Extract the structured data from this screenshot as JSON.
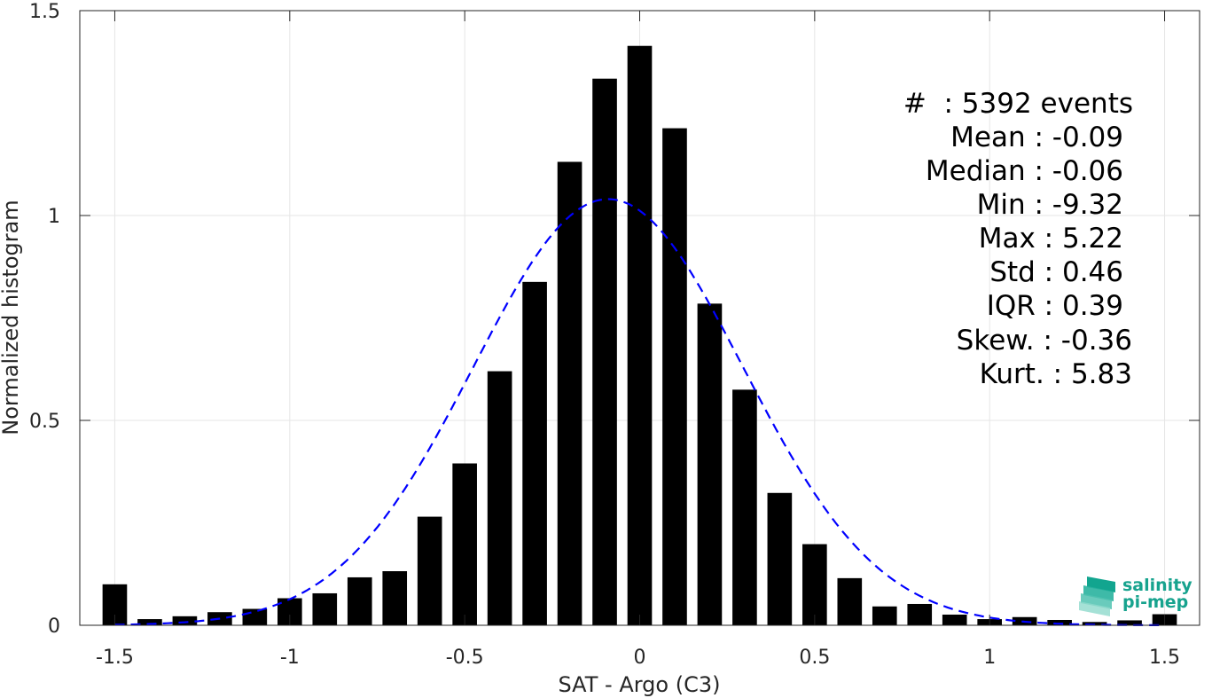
{
  "chart_data": {
    "type": "bar",
    "title": "",
    "xlabel": "SAT - Argo (C3)",
    "ylabel": "Normalized histogram",
    "xlim": [
      -1.6,
      1.6
    ],
    "ylim": [
      0,
      1.5
    ],
    "xticks": [
      -1.5,
      -1,
      -0.5,
      0,
      0.5,
      1,
      1.5
    ],
    "xtick_labels": [
      "-1.5",
      "-1",
      "-0.5",
      "0",
      "0.5",
      "1",
      "1.5"
    ],
    "yticks": [
      0,
      0.5,
      1,
      1.5
    ],
    "ytick_labels": [
      "0",
      "0.5",
      "1",
      "1.5"
    ],
    "grid": true,
    "bar_color": "#000000",
    "bins": {
      "x": [
        -1.5,
        -1.4,
        -1.3,
        -1.2,
        -1.1,
        -1.0,
        -0.9,
        -0.8,
        -0.7,
        -0.6,
        -0.5,
        -0.4,
        -0.3,
        -0.2,
        -0.1,
        0.0,
        0.1,
        0.2,
        0.3,
        0.4,
        0.5,
        0.6,
        0.7,
        0.8,
        0.9,
        1.0,
        1.1,
        1.2,
        1.3,
        1.4,
        1.5
      ],
      "values": [
        0.1,
        0.015,
        0.022,
        0.032,
        0.04,
        0.066,
        0.078,
        0.117,
        0.132,
        0.265,
        0.395,
        0.62,
        0.838,
        1.131,
        1.334,
        1.414,
        1.213,
        0.785,
        0.575,
        0.323,
        0.198,
        0.115,
        0.046,
        0.052,
        0.026,
        0.015,
        0.02,
        0.013,
        0.008,
        0.012,
        0.027
      ]
    },
    "fit_curve": {
      "type": "gaussian",
      "mean": -0.09,
      "std": 0.385,
      "peak": 1.04,
      "color": "#0000ff",
      "style": "dashed"
    }
  },
  "stats": {
    "events": "#  : 5392 events",
    "mean": "Mean : -0.09",
    "median": "Median : -0.06",
    "min": "Min : -9.32",
    "max": "Max : 5.22",
    "std": "Std : 0.46",
    "iqr": "IQR : 0.39",
    "skew": "Skew. : -0.36",
    "kurt": "Kurt. : 5.83"
  },
  "logo": {
    "line1": "salinity",
    "line2": "pi-mep"
  }
}
